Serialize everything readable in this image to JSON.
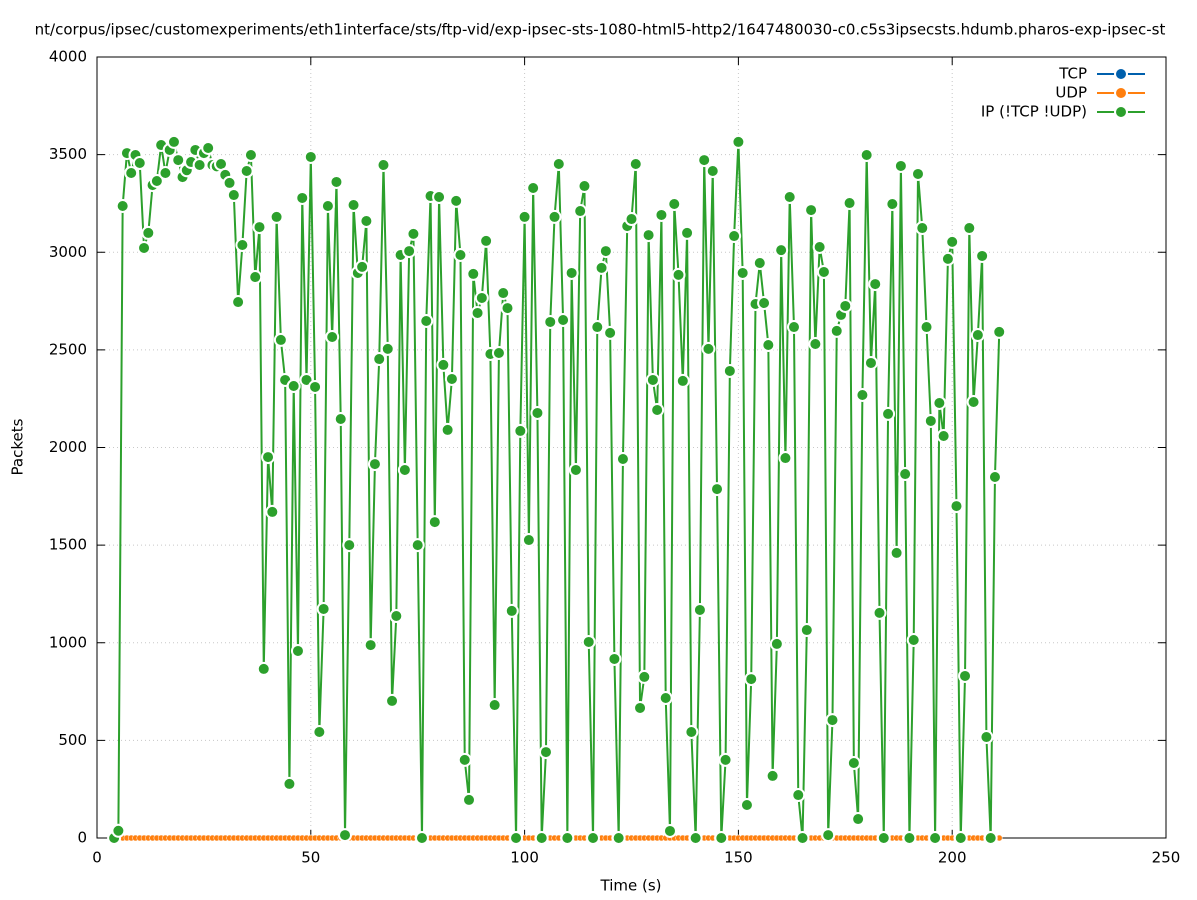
{
  "chart_data": {
    "type": "line",
    "title": "nt/corpus/ipsec/customexperiments/eth1interface/sts/ftp-vid/exp-ipsec-sts-1080-html5-http2/1647480030-c0.c5s3ipsecsts.hdumb.pharos-exp-ipsec-st",
    "x_label": "Time (s)",
    "y_label": "Packets",
    "xlim": [
      0,
      250
    ],
    "xticks": [
      0,
      50,
      100,
      150,
      200,
      250
    ],
    "ylim": [
      0,
      4000
    ],
    "yticks": [
      0,
      500,
      1000,
      1500,
      2000,
      2500,
      3000,
      3500,
      4000
    ],
    "grid": true,
    "legend": "top-right",
    "x": [
      4,
      5,
      6,
      7,
      8,
      9,
      10,
      11,
      12,
      13,
      14,
      15,
      16,
      17,
      18,
      19,
      20,
      21,
      22,
      23,
      24,
      25,
      26,
      27,
      28,
      29,
      30,
      31,
      32,
      33,
      34,
      35,
      36,
      37,
      38,
      39,
      40,
      41,
      42,
      43,
      44,
      45,
      46,
      47,
      48,
      49,
      50,
      51,
      52,
      53,
      54,
      55,
      56,
      57,
      58,
      59,
      60,
      61,
      62,
      63,
      64,
      65,
      66,
      67,
      68,
      69,
      70,
      71,
      72,
      73,
      74,
      75,
      76,
      77,
      78,
      79,
      80,
      81,
      82,
      83,
      84,
      85,
      86,
      87,
      88,
      89,
      90,
      91,
      92,
      93,
      94,
      95,
      96,
      97,
      98,
      99,
      100,
      101,
      102,
      103,
      104,
      105,
      106,
      107,
      108,
      109,
      110,
      111,
      112,
      113,
      114,
      115,
      116,
      117,
      118,
      119,
      120,
      121,
      122,
      123,
      124,
      125,
      126,
      127,
      128,
      129,
      130,
      131,
      132,
      133,
      134,
      135,
      136,
      137,
      138,
      139,
      140,
      141,
      142,
      143,
      144,
      145,
      146,
      147,
      148,
      149,
      150,
      151,
      152,
      153,
      154,
      155,
      156,
      157,
      158,
      159,
      160,
      161,
      162,
      163,
      164,
      165,
      166,
      167,
      168,
      169,
      170,
      171,
      172,
      173,
      174,
      175,
      176,
      177,
      178,
      179,
      180,
      181,
      182,
      183,
      184,
      185,
      186,
      187,
      188,
      189,
      190,
      191,
      192,
      193,
      194,
      195,
      196,
      197,
      198,
      199,
      200,
      201,
      202,
      203,
      204,
      205,
      206,
      207,
      208,
      209,
      210,
      211
    ],
    "series": [
      {
        "name": "TCP",
        "color": "#0060ad",
        "values": [
          0,
          0,
          0,
          0,
          0,
          0,
          0,
          0,
          0,
          0,
          0,
          0,
          0,
          0,
          0,
          0,
          0,
          0,
          0,
          0,
          0,
          0,
          0,
          0,
          0,
          0,
          0,
          0,
          0,
          0,
          0,
          0,
          0,
          0,
          0,
          0,
          0,
          0,
          0,
          0,
          0,
          0,
          0,
          0,
          0,
          0,
          0,
          0,
          0,
          0,
          0,
          0,
          0,
          0,
          0,
          0,
          0,
          0,
          0,
          0,
          0,
          0,
          0,
          0,
          0,
          0,
          0,
          0,
          0,
          0,
          0,
          0,
          0,
          0,
          0,
          0,
          0,
          0,
          0,
          0,
          0,
          0,
          0,
          0,
          0,
          0,
          0,
          0,
          0,
          0,
          0,
          0,
          0,
          0,
          0,
          0,
          0,
          0,
          0,
          0,
          0,
          0,
          0,
          0,
          0,
          0,
          0,
          0,
          0,
          0,
          0,
          0,
          0,
          0,
          0,
          0,
          0,
          0,
          0,
          0,
          0,
          0,
          0,
          0,
          0,
          0,
          0,
          0,
          0,
          0,
          0,
          0,
          0,
          0,
          0,
          0,
          0,
          0,
          0,
          0,
          0,
          0,
          0,
          0,
          0,
          0,
          0,
          0,
          0,
          0,
          0,
          0,
          0,
          0,
          0,
          0,
          0,
          0,
          0,
          0,
          0,
          0,
          0,
          0,
          0,
          0,
          0,
          0,
          0,
          0,
          0,
          0,
          0,
          0,
          0,
          0,
          0,
          0,
          0,
          0,
          0,
          0,
          0,
          0,
          0,
          0,
          0,
          0,
          0,
          0,
          0,
          0,
          0,
          0,
          0,
          0,
          0,
          0,
          0,
          0,
          0,
          0,
          0,
          0,
          0,
          0,
          0,
          0
        ]
      },
      {
        "name": "UDP",
        "color": "#ff7f0e",
        "values": [
          0,
          0,
          0,
          0,
          0,
          0,
          0,
          0,
          0,
          0,
          0,
          0,
          0,
          0,
          0,
          0,
          0,
          0,
          0,
          0,
          0,
          0,
          0,
          0,
          0,
          0,
          0,
          0,
          0,
          0,
          0,
          0,
          0,
          0,
          0,
          0,
          0,
          0,
          0,
          0,
          0,
          0,
          0,
          0,
          0,
          0,
          0,
          0,
          0,
          0,
          0,
          0,
          0,
          0,
          0,
          0,
          0,
          0,
          0,
          0,
          0,
          0,
          0,
          0,
          0,
          0,
          0,
          0,
          0,
          0,
          0,
          0,
          0,
          0,
          0,
          0,
          0,
          0,
          0,
          0,
          0,
          0,
          0,
          0,
          0,
          0,
          0,
          0,
          0,
          0,
          0,
          0,
          0,
          0,
          0,
          0,
          0,
          0,
          0,
          0,
          0,
          0,
          0,
          0,
          0,
          0,
          0,
          0,
          0,
          0,
          0,
          0,
          0,
          0,
          0,
          0,
          0,
          0,
          0,
          0,
          0,
          0,
          0,
          0,
          0,
          0,
          0,
          0,
          0,
          0,
          0,
          0,
          0,
          0,
          0,
          0,
          0,
          0,
          0,
          0,
          0,
          0,
          0,
          0,
          0,
          0,
          0,
          0,
          0,
          0,
          0,
          0,
          0,
          0,
          0,
          0,
          0,
          0,
          0,
          0,
          0,
          0,
          0,
          0,
          0,
          0,
          0,
          0,
          0,
          0,
          0,
          0,
          0,
          0,
          0,
          0,
          0,
          0,
          0,
          0,
          0,
          0,
          0,
          0,
          0,
          0,
          0,
          0,
          0,
          0,
          0,
          0,
          0,
          0,
          0,
          0,
          0,
          0,
          0,
          0,
          0,
          0,
          0,
          0,
          0,
          0,
          0,
          0
        ]
      },
      {
        "name": "IP (!TCP  !UDP)",
        "color": "#2ca02c",
        "values": [
          0,
          37,
          3237,
          3508,
          3406,
          3498,
          3457,
          3022,
          3099,
          3344,
          3365,
          3549,
          3406,
          3524,
          3565,
          3472,
          3385,
          3420,
          3462,
          3524,
          3447,
          3508,
          3534,
          3447,
          3440,
          3452,
          3396,
          3355,
          3293,
          2745,
          3037,
          3416,
          3498,
          2873,
          3129,
          866,
          1951,
          1670,
          3181,
          2551,
          2346,
          277,
          2315,
          958,
          3278,
          2346,
          3488,
          2310,
          543,
          1173,
          3237,
          2566,
          3360,
          2146,
          15,
          1500,
          3242,
          2894,
          2925,
          3160,
          988,
          1915,
          2453,
          3447,
          2505,
          702,
          1137,
          2986,
          1885,
          3006,
          3094,
          1500,
          0,
          2648,
          3288,
          1618,
          3283,
          2423,
          2090,
          2351,
          3263,
          2986,
          400,
          195,
          2889,
          2689,
          2766,
          3058,
          2479,
          681,
          2484,
          2791,
          2714,
          1163,
          0,
          2085,
          3181,
          1526,
          3329,
          2177,
          0,
          440,
          2643,
          3181,
          3452,
          2653,
          0,
          2894,
          1885,
          3211,
          3339,
          1004,
          0,
          2617,
          2920,
          3006,
          2587,
          917,
          0,
          1941,
          3134,
          3170,
          3452,
          666,
          825,
          3088,
          2346,
          2192,
          3191,
          717,
          36,
          3247,
          2884,
          2341,
          3099,
          543,
          0,
          1168,
          3472,
          2505,
          3416,
          1787,
          0,
          400,
          2392,
          3083,
          3565,
          2894,
          169,
          814,
          2735,
          2945,
          2740,
          2525,
          318,
          994,
          3011,
          1946,
          3283,
          2617,
          220,
          0,
          1065,
          3216,
          2530,
          3027,
          2899,
          15,
          604,
          2597,
          2679,
          2725,
          3252,
          384,
          97,
          2269,
          3498,
          2433,
          2837,
          1153,
          0,
          2172,
          3247,
          1460,
          3442,
          1864,
          0,
          1014,
          3401,
          3124,
          2617,
          2136,
          0,
          2228,
          2059,
          2966,
          3053,
          1700,
          0,
          830,
          3124,
          2233,
          2576,
          2981,
          517,
          0,
          1849,
          2592
        ]
      }
    ]
  }
}
